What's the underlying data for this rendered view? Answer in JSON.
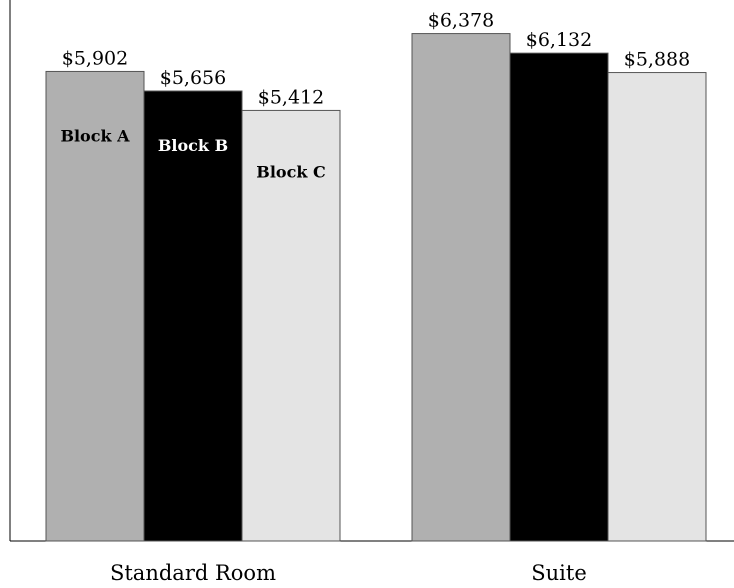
{
  "chart_data": {
    "type": "bar",
    "categories": [
      "Standard Room",
      "Suite"
    ],
    "series": [
      {
        "name": "Block A",
        "values": [
          5902,
          6378
        ],
        "value_labels": [
          "$5,902",
          "$6,378"
        ],
        "color": "#b0b0b0",
        "label_color": "#000000"
      },
      {
        "name": "Block B",
        "values": [
          5656,
          6132
        ],
        "value_labels": [
          "$5,656",
          "$6,132"
        ],
        "color": "#000000",
        "label_color": "#ffffff"
      },
      {
        "name": "Block C",
        "values": [
          5412,
          5888
        ],
        "value_labels": [
          "$5,412",
          "$5,888"
        ],
        "color": "#e4e4e4",
        "label_color": "#000000"
      }
    ],
    "ylim": [
      0,
      6800
    ],
    "grid": false,
    "legend": "inside-bars"
  }
}
